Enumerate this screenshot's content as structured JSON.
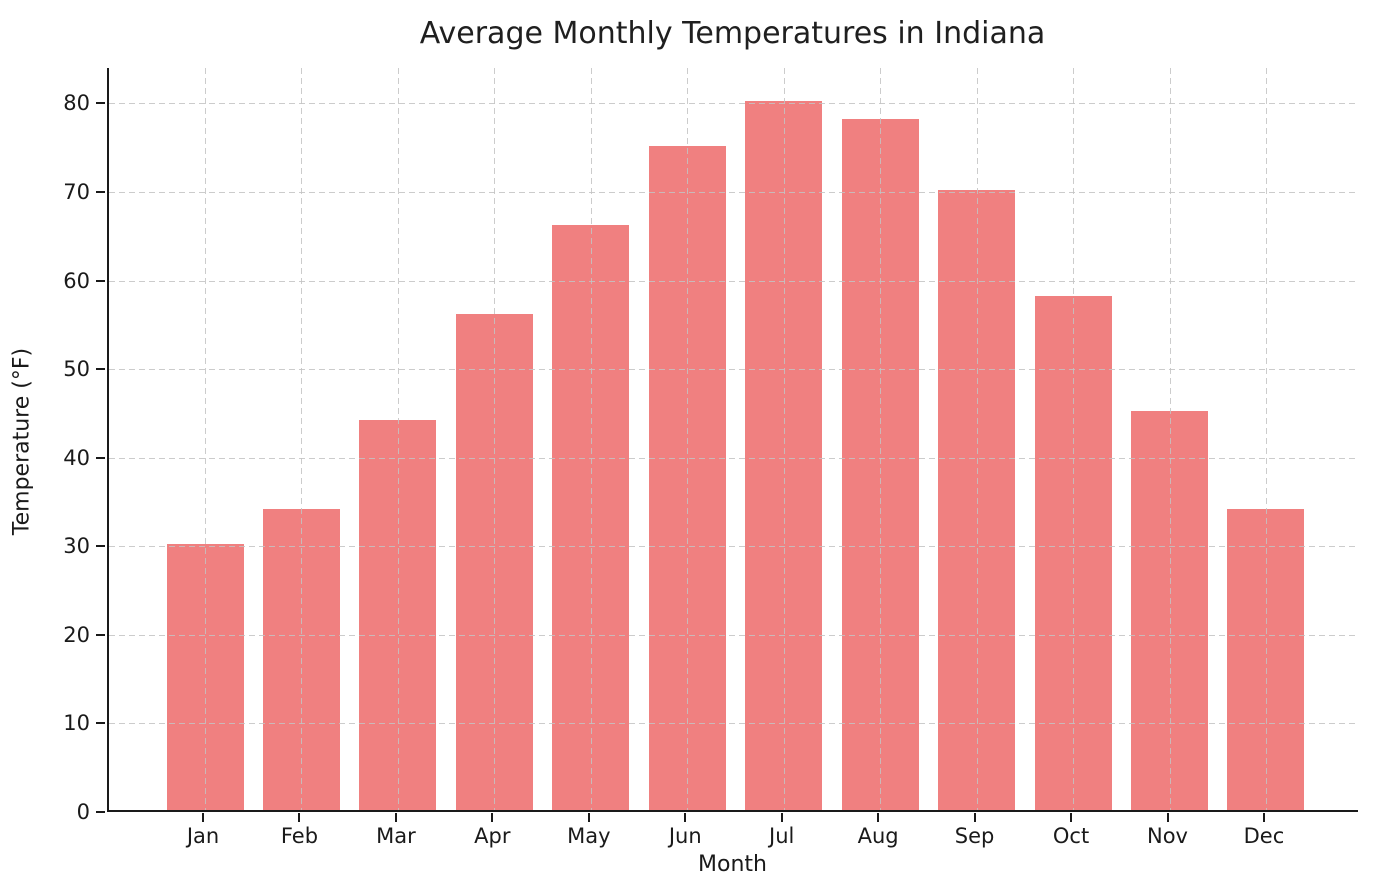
{
  "chart_data": {
    "type": "bar",
    "title": "Average Monthly Temperatures in Indiana",
    "xlabel": "Month",
    "ylabel": "Temperature (°F)",
    "categories": [
      "Jan",
      "Feb",
      "Mar",
      "Apr",
      "May",
      "Jun",
      "Jul",
      "Aug",
      "Sep",
      "Oct",
      "Nov",
      "Dec"
    ],
    "values": [
      30,
      34,
      44,
      56,
      66,
      75,
      80,
      78,
      70,
      58,
      45,
      34
    ],
    "ylim": [
      0,
      84
    ],
    "yticks": [
      0,
      10,
      20,
      30,
      40,
      50,
      60,
      70,
      80
    ],
    "bar_color": "#f08080",
    "spine_color": "#1a1a1a",
    "grid": "dashed, both axes, drawn above bars",
    "legend": "none"
  }
}
